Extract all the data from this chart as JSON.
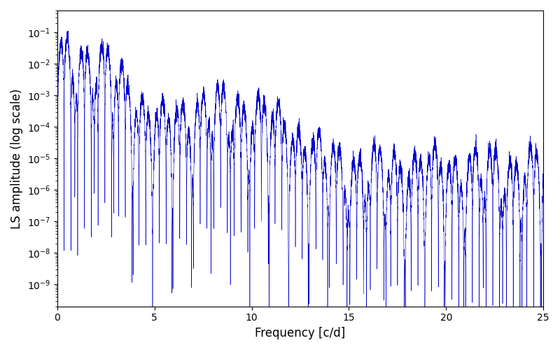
{
  "title": "",
  "xlabel": "Frequency [c/d]",
  "ylabel": "LS amplitude (log scale)",
  "line_color": "#0000cc",
  "xmin": 0,
  "xmax": 25,
  "ymin": 2e-10,
  "ymax": 0.5,
  "figsize": [
    8.0,
    5.0
  ],
  "dpi": 100,
  "seed": 42,
  "n_points": 8000,
  "background_color": "#ffffff"
}
